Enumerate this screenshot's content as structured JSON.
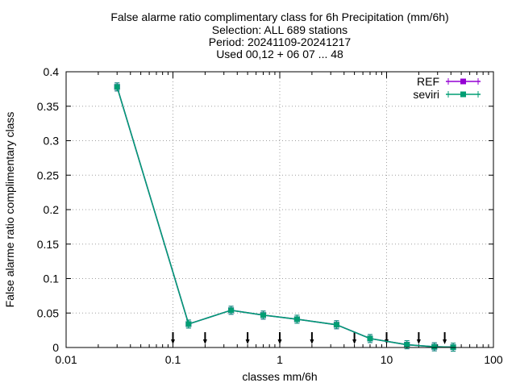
{
  "chart_data": {
    "type": "line",
    "title_lines": [
      "False alarme ratio complimentary class  for 6h Precipitation (mm/6h)",
      "Selection: ALL    689 stations",
      "Period: 20241109-20241217",
      "Used 00,12 + 06 07 ... 48"
    ],
    "xlabel": "classes mm/6h",
    "ylabel": "False alarme ratio complimentary class",
    "x_scale": "log",
    "xlim": [
      0.01,
      100
    ],
    "ylim": [
      0,
      0.4
    ],
    "x_ticks": [
      {
        "value": 0.01,
        "label": "0.01"
      },
      {
        "value": 0.1,
        "label": "0.1"
      },
      {
        "value": 1,
        "label": "1"
      },
      {
        "value": 10,
        "label": "10"
      },
      {
        "value": 100,
        "label": "100"
      }
    ],
    "y_ticks": [
      {
        "value": 0,
        "label": "0"
      },
      {
        "value": 0.05,
        "label": "0.05"
      },
      {
        "value": 0.1,
        "label": "0.1"
      },
      {
        "value": 0.15,
        "label": "0.15"
      },
      {
        "value": 0.2,
        "label": "0.2"
      },
      {
        "value": 0.25,
        "label": "0.25"
      },
      {
        "value": 0.3,
        "label": "0.3"
      },
      {
        "value": 0.35,
        "label": "0.35"
      },
      {
        "value": 0.4,
        "label": "0.4"
      }
    ],
    "grid": true,
    "legend_position": "top-right",
    "threshold_markers": [
      0.1,
      0.2,
      0.5,
      1,
      2,
      5,
      10,
      20,
      35
    ],
    "series": [
      {
        "name": "REF",
        "color": "#9400d3",
        "x": [
          0.03,
          0.14,
          0.35,
          0.7,
          1.45,
          3.4,
          7.0,
          15.5,
          28,
          42
        ],
        "y": [
          0.378,
          0.034,
          0.054,
          0.047,
          0.041,
          0.033,
          0.013,
          0.004,
          0.001,
          0.0005
        ]
      },
      {
        "name": "seviri",
        "color": "#009e73",
        "x": [
          0.03,
          0.14,
          0.35,
          0.7,
          1.45,
          3.4,
          7.0,
          15.5,
          28,
          42
        ],
        "y": [
          0.378,
          0.034,
          0.054,
          0.047,
          0.041,
          0.033,
          0.013,
          0.004,
          0.001,
          0.0005
        ]
      }
    ]
  }
}
